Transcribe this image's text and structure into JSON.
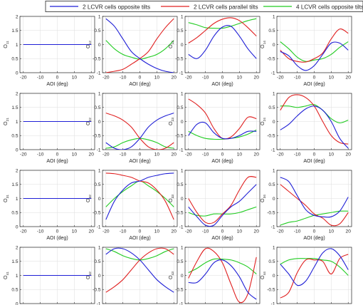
{
  "chart_data": {
    "type": "line",
    "layout": "4x4 grid of subplots",
    "legend": {
      "placement": "top",
      "entries": [
        {
          "name": "2 LCVR cells opposite tilts",
          "color": "#1f1fd6"
        },
        {
          "name": "2 LCVR cells parallel tilts",
          "color": "#e02020"
        },
        {
          "name": "4 LCVR cells opposite tilts",
          "color": "#22cc22"
        }
      ]
    },
    "x": [
      -20,
      -15,
      -10,
      -5,
      0,
      5,
      10,
      15,
      20
    ],
    "xlabel": "AOI (deg)",
    "xticks": [
      "-20",
      "-10",
      "0",
      "10",
      "20"
    ],
    "xlim": [
      -22,
      22
    ],
    "grid": true,
    "subplots": [
      {
        "ylabel": "O",
        "sub": "11",
        "ylim": [
          0,
          2
        ],
        "yticks": [
          "0",
          "0.5",
          "1",
          "1.5",
          "2"
        ],
        "series": [
          [
            1,
            1,
            1,
            1,
            1,
            1,
            1,
            1,
            1
          ],
          [
            1,
            1,
            1,
            1,
            1,
            1,
            1,
            1,
            1
          ],
          [
            1,
            1,
            1,
            1,
            1,
            1,
            1,
            1,
            1
          ]
        ]
      },
      {
        "ylabel": "O",
        "sub": "12",
        "ylim": [
          -1,
          1
        ],
        "yticks": [
          "-1",
          "-0.5",
          "0",
          "0.5",
          "1"
        ],
        "series": [
          [
            0.92,
            0.65,
            0.2,
            -0.25,
            -0.5,
            -0.7,
            -0.85,
            -0.95,
            -1.0
          ],
          [
            -1.0,
            -0.95,
            -0.88,
            -0.7,
            -0.5,
            -0.25,
            0.2,
            0.6,
            0.92
          ],
          [
            0.15,
            -0.15,
            -0.35,
            -0.45,
            -0.52,
            -0.45,
            -0.35,
            -0.15,
            0.15
          ]
        ]
      },
      {
        "ylabel": "O",
        "sub": "13",
        "ylim": [
          -1,
          1
        ],
        "yticks": [
          "-1",
          "-0.5",
          "0",
          "0.5",
          "1"
        ],
        "series": [
          [
            -0.35,
            -0.5,
            -0.2,
            0.3,
            0.62,
            0.65,
            0.3,
            -0.15,
            -0.5
          ],
          [
            0.05,
            0.25,
            0.5,
            0.75,
            0.9,
            0.95,
            0.85,
            0.6,
            0.3
          ],
          [
            0.78,
            0.7,
            0.6,
            0.58,
            0.58,
            0.65,
            0.75,
            0.85,
            0.92
          ]
        ]
      },
      {
        "ylabel": "O",
        "sub": "14",
        "ylim": [
          -1,
          1
        ],
        "yticks": [
          "-1",
          "-0.5",
          "0",
          "0.5",
          "1"
        ],
        "series": [
          [
            -0.25,
            -0.4,
            -0.75,
            -0.92,
            -0.75,
            -0.35,
            0.05,
            0.05,
            -0.2
          ],
          [
            -0.2,
            -0.5,
            -0.6,
            -0.62,
            -0.5,
            -0.3,
            0.2,
            0.55,
            0.4
          ],
          [
            0.1,
            -0.15,
            -0.45,
            -0.6,
            -0.55,
            -0.5,
            -0.35,
            -0.1,
            0.1
          ]
        ]
      },
      {
        "ylabel": "O",
        "sub": "21",
        "ylim": [
          0,
          2
        ],
        "yticks": [
          "0",
          "0.5",
          "1",
          "1.5",
          "2"
        ],
        "series": [
          [
            1,
            1,
            1,
            1,
            1,
            1,
            1,
            1,
            1
          ],
          [
            1,
            1,
            1,
            1,
            1,
            1,
            1,
            1,
            1
          ],
          [
            1,
            1,
            1,
            1,
            1,
            1,
            1,
            1,
            1
          ]
        ]
      },
      {
        "ylabel": "O",
        "sub": "22",
        "ylim": [
          -1,
          1
        ],
        "yticks": [
          "-1",
          "-0.5",
          "0",
          "0.5",
          "1"
        ],
        "series": [
          [
            -0.75,
            -0.95,
            -1.0,
            -0.9,
            -0.6,
            -0.2,
            0.05,
            0.2,
            0.3
          ],
          [
            0.3,
            0.2,
            0.05,
            -0.2,
            -0.6,
            -0.9,
            -1.0,
            -0.95,
            -0.75
          ],
          [
            -0.95,
            -0.9,
            -0.75,
            -0.65,
            -0.6,
            -0.65,
            -0.75,
            -0.9,
            -0.95
          ]
        ]
      },
      {
        "ylabel": "O",
        "sub": "23",
        "ylim": [
          -1,
          1
        ],
        "yticks": [
          "-1",
          "-0.5",
          "0",
          "0.5",
          "1"
        ],
        "series": [
          [
            -0.5,
            -0.1,
            -0.05,
            -0.4,
            -0.6,
            -0.6,
            -0.5,
            -0.35,
            -0.35
          ],
          [
            0.8,
            0.6,
            0.3,
            -0.25,
            -0.6,
            -0.55,
            -0.25,
            0.15,
            0.1
          ],
          [
            -0.35,
            -0.5,
            -0.6,
            -0.63,
            -0.63,
            -0.6,
            -0.55,
            -0.45,
            -0.3
          ]
        ]
      },
      {
        "ylabel": "O",
        "sub": "24",
        "ylim": [
          -1,
          1
        ],
        "yticks": [
          "-1",
          "-0.5",
          "0",
          "0.5",
          "1"
        ],
        "series": [
          [
            -0.3,
            -0.1,
            0.2,
            0.45,
            0.55,
            0.4,
            0.0,
            -0.6,
            -0.95
          ],
          [
            0.4,
            0.85,
            0.95,
            0.85,
            0.55,
            0.0,
            -0.5,
            -0.75,
            -0.8
          ],
          [
            0.55,
            0.55,
            0.5,
            0.55,
            0.6,
            0.4,
            0.1,
            -0.05,
            0.05
          ]
        ]
      },
      {
        "ylabel": "O",
        "sub": "31",
        "ylim": [
          0,
          2
        ],
        "yticks": [
          "0",
          "0.5",
          "1",
          "1.5",
          "2"
        ],
        "series": [
          [
            1,
            1,
            1,
            1,
            1,
            1,
            1,
            1,
            1
          ],
          [
            1,
            1,
            1,
            1,
            1,
            1,
            1,
            1,
            1
          ],
          [
            1,
            1,
            1,
            1,
            1,
            1,
            1,
            1,
            1
          ]
        ]
      },
      {
        "ylabel": "O",
        "sub": "32",
        "ylim": [
          -1,
          1
        ],
        "yticks": [
          "-1",
          "-0.5",
          "0",
          "0.5",
          "1"
        ],
        "series": [
          [
            -0.75,
            -0.1,
            0.3,
            0.55,
            0.62,
            0.75,
            0.82,
            0.88,
            0.9
          ],
          [
            0.9,
            0.88,
            0.82,
            0.75,
            0.62,
            0.55,
            0.3,
            -0.1,
            -0.75
          ],
          [
            -0.3,
            0.0,
            0.25,
            0.45,
            0.62,
            0.45,
            0.25,
            0.0,
            -0.3
          ]
        ]
      },
      {
        "ylabel": "O",
        "sub": "33",
        "ylim": [
          -1,
          1
        ],
        "yticks": [
          "-1",
          "-0.5",
          "0",
          "0.5",
          "1"
        ],
        "series": [
          [
            -0.3,
            -0.65,
            -0.95,
            -0.95,
            -0.6,
            -0.3,
            -0.1,
            0.2,
            0.5
          ],
          [
            0.0,
            -0.5,
            -0.85,
            -0.85,
            -0.55,
            -0.25,
            0.3,
            0.75,
            0.75
          ],
          [
            -0.5,
            -0.6,
            -0.62,
            -0.55,
            -0.55,
            -0.55,
            -0.5,
            -0.4,
            -0.3
          ]
        ]
      },
      {
        "ylabel": "O",
        "sub": "34",
        "ylim": [
          -1,
          1
        ],
        "yticks": [
          "-1",
          "-0.5",
          "0",
          "0.5",
          "1"
        ],
        "series": [
          [
            0.75,
            0.6,
            0.1,
            -0.4,
            -0.6,
            -0.65,
            -0.65,
            -0.45,
            0.05
          ],
          [
            0.5,
            0.25,
            0.0,
            -0.25,
            -0.55,
            -0.7,
            -0.95,
            -0.9,
            -0.5
          ],
          [
            -0.95,
            -0.85,
            -0.8,
            -0.7,
            -0.6,
            -0.55,
            -0.5,
            -0.45,
            -0.45
          ]
        ]
      },
      {
        "ylabel": "O",
        "sub": "41",
        "ylim": [
          0,
          2
        ],
        "yticks": [
          "0",
          "0.5",
          "1",
          "1.5",
          "2"
        ],
        "series": [
          [
            1,
            1,
            1,
            1,
            1,
            1,
            1,
            1,
            1
          ],
          [
            1,
            1,
            1,
            1,
            1,
            1,
            1,
            1,
            1
          ],
          [
            1,
            1,
            1,
            1,
            1,
            1,
            1,
            1,
            1
          ]
        ]
      },
      {
        "ylabel": "O",
        "sub": "42",
        "ylim": [
          -1,
          1
        ],
        "yticks": [
          "-1",
          "-0.5",
          "0",
          "0.5",
          "1"
        ],
        "series": [
          [
            0.75,
            0.95,
            0.95,
            0.8,
            0.55,
            0.2,
            -0.15,
            -0.4,
            -0.6
          ],
          [
            -0.6,
            -0.4,
            -0.15,
            0.2,
            0.55,
            0.8,
            0.95,
            0.95,
            0.75
          ],
          [
            0.95,
            0.85,
            0.7,
            0.6,
            0.55,
            0.6,
            0.7,
            0.85,
            0.95
          ]
        ]
      },
      {
        "ylabel": "O",
        "sub": "43",
        "ylim": [
          -1,
          1
        ],
        "yticks": [
          "-1",
          "-0.5",
          "0",
          "0.5",
          "1"
        ],
        "series": [
          [
            -0.25,
            -0.25,
            0.05,
            0.45,
            0.55,
            0.35,
            -0.05,
            -0.6,
            -0.85
          ],
          [
            -0.1,
            0.5,
            0.95,
            0.85,
            0.45,
            -0.3,
            -0.95,
            -0.65,
            0.65
          ],
          [
            0.1,
            0.25,
            0.45,
            0.58,
            0.58,
            0.55,
            0.45,
            0.3,
            0.05
          ]
        ]
      },
      {
        "ylabel": "O",
        "sub": "44",
        "ylim": [
          -1,
          1
        ],
        "yticks": [
          "-1",
          "-0.5",
          "0",
          "0.5",
          "1"
        ],
        "series": [
          [
            0.4,
            0.05,
            -0.35,
            -0.2,
            0.3,
            0.8,
            0.95,
            0.7,
            0.2
          ],
          [
            -0.8,
            -0.6,
            0.1,
            0.55,
            0.55,
            0.5,
            0.05,
            0.6,
            0.75
          ],
          [
            0.4,
            0.55,
            0.6,
            0.6,
            0.6,
            0.55,
            0.5,
            0.3,
            0.0
          ]
        ]
      }
    ]
  }
}
